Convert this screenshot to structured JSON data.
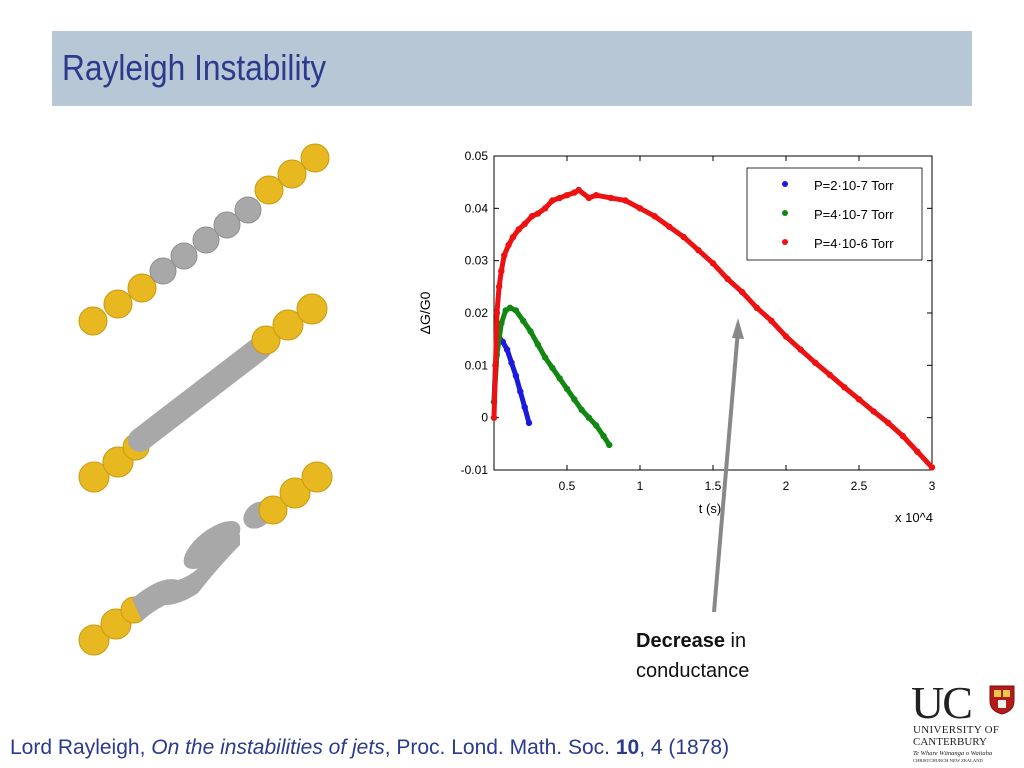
{
  "slide": {
    "title": "Rayleigh Instability",
    "callout_bold": "Decrease",
    "callout_rest1": " in",
    "callout_rest2": "conductance",
    "reference": {
      "part1": "Lord Rayleigh, ",
      "italic": "On the instabilities of jets",
      "part2": ", Proc. Lond. Math. Soc. ",
      "bold": "10",
      "part3": ", 4 (1878)"
    },
    "logo": {
      "mark": "UC",
      "line1": "UNIVERSITY OF",
      "line2": "CANTERBURY",
      "line3": "Te Whare Wānanga o Waitaha",
      "line4": "CHRISTCHURCH NEW ZEALAND"
    }
  },
  "colors": {
    "title_bar": "#b8c7d6",
    "title_text": "#2b3a8c",
    "gold": "#e8b820",
    "silver": "#a8a8a8",
    "arrow": "#888888"
  },
  "chart_data": {
    "type": "scatter",
    "xlabel": "t (s)",
    "ylabel": "ΔG/G0",
    "x_multiplier": "x 10^4",
    "xlim": [
      0,
      30000
    ],
    "ylim": [
      -0.01,
      0.05
    ],
    "x_ticks": [
      5000,
      10000,
      15000,
      20000,
      25000,
      30000
    ],
    "x_tick_labels": [
      "0.5",
      "1",
      "1.5",
      "2",
      "2.5",
      "3"
    ],
    "y_ticks": [
      -0.01,
      0,
      0.01,
      0.02,
      0.03,
      0.04,
      0.05
    ],
    "y_tick_labels": [
      "-0.01",
      "0",
      "0.01",
      "0.02",
      "0.03",
      "0.04",
      "0.05"
    ],
    "legend_position": "top-right",
    "series": [
      {
        "name": "P=2·10-7 Torr",
        "color": "#1a1adc",
        "x": [
          0,
          100,
          250,
          400,
          600,
          900,
          1200,
          1500,
          1800,
          2100,
          2400
        ],
        "y": [
          0.003,
          0.01,
          0.0145,
          0.015,
          0.0145,
          0.013,
          0.0105,
          0.008,
          0.005,
          0.002,
          -0.001
        ]
      },
      {
        "name": "P=4·10-7 Torr",
        "color": "#118811",
        "x": [
          0,
          200,
          500,
          800,
          1100,
          1500,
          2000,
          2500,
          3000,
          3500,
          4000,
          4500,
          5000,
          5500,
          6000,
          6500,
          7000,
          7500,
          7900
        ],
        "y": [
          0.003,
          0.012,
          0.018,
          0.0205,
          0.021,
          0.0205,
          0.0185,
          0.0165,
          0.014,
          0.0115,
          0.0095,
          0.0075,
          0.0055,
          0.0035,
          0.0015,
          0,
          -0.0015,
          -0.0035,
          -0.0052
        ]
      },
      {
        "name": "P=4·10-6 Torr",
        "color": "#ee1111",
        "x": [
          0,
          100,
          200,
          350,
          500,
          700,
          1000,
          1300,
          1700,
          2100,
          2600,
          3000,
          3500,
          4000,
          4500,
          5000,
          5500,
          5800,
          6500,
          7000,
          8000,
          9000,
          10000,
          11000,
          12000,
          13000,
          14000,
          15000,
          16000,
          17000,
          18000,
          19000,
          20000,
          21000,
          22000,
          23000,
          24000,
          25000,
          26000,
          27000,
          28000,
          29000,
          30000
        ],
        "y": [
          0.0,
          0.01,
          0.02,
          0.025,
          0.028,
          0.031,
          0.033,
          0.0345,
          0.036,
          0.037,
          0.0385,
          0.039,
          0.04,
          0.0415,
          0.042,
          0.0425,
          0.043,
          0.0435,
          0.042,
          0.0425,
          0.042,
          0.0415,
          0.04,
          0.0385,
          0.0365,
          0.0345,
          0.032,
          0.0295,
          0.0265,
          0.024,
          0.021,
          0.0185,
          0.0155,
          0.013,
          0.0105,
          0.0082,
          0.0058,
          0.0035,
          0.0012,
          -0.001,
          -0.0035,
          -0.0065,
          -0.0095
        ]
      }
    ]
  }
}
